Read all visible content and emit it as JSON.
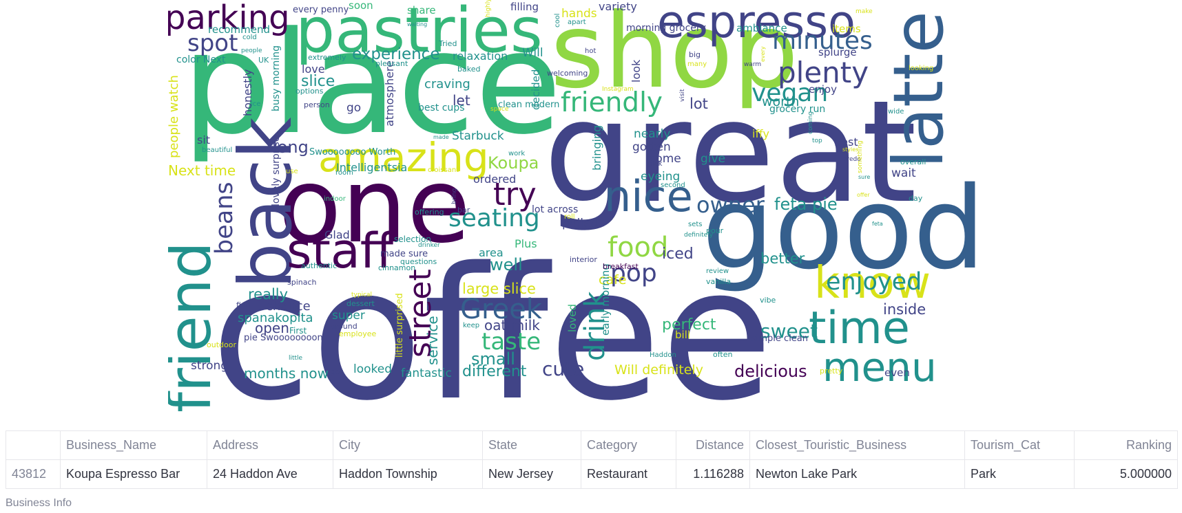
{
  "wordcloud": {
    "colors": {
      "dark_purple": "#440154",
      "indigo": "#414487",
      "blue": "#355f8d",
      "teal": "#21918c",
      "green": "#35b779",
      "lime": "#90d743",
      "yellow": "#d8e219"
    },
    "words": [
      "coffee",
      "place",
      "great",
      "shop",
      "good",
      "pastries",
      "one",
      "espresso",
      "latte",
      "back",
      "friend",
      "amazing",
      "staff",
      "nice",
      "plenty",
      "minutes",
      "vegan",
      "friendly",
      "parking",
      "spot",
      "know",
      "time",
      "menu",
      "owner",
      "feta pie",
      "food",
      "pop",
      "enjoyed",
      "try",
      "seating",
      "beans",
      "drink",
      "street",
      "Greek",
      "taste",
      "sweet",
      "cute",
      "delicious",
      "perfect",
      "small",
      "large slice",
      "Koupa",
      "long",
      "experience",
      "slice",
      "let",
      "craving",
      "iced",
      "better",
      "cafe",
      "inside",
      "lot",
      "worth",
      "well",
      "really",
      "chance",
      "spanakopita",
      "open",
      "super",
      "oat milk",
      "different",
      "months now",
      "looked",
      "fantastic",
      "Will definitely",
      "service",
      "strong",
      "Next time",
      "people watch",
      "honestly",
      "go",
      "atmosphere",
      "Starbuck",
      "Intelligentsia",
      "ordered",
      "gotten",
      "nearly",
      "come",
      "give",
      "eyeing",
      "bringing",
      "pulled",
      "lot across",
      "Glad",
      "iffy",
      "best",
      "wait",
      "hands",
      "variety",
      "morning grocery",
      "ambiance",
      "items",
      "splurge",
      "enjoy",
      "grocery run",
      "look",
      "relaxation",
      "Will",
      "recommend",
      "every penny",
      "soon",
      "share",
      "filling",
      "area",
      "Plus",
      "selection",
      "made sure",
      "questions",
      "cinnamon",
      "authentic",
      "decided",
      "loved",
      "early morning",
      "bill",
      "simple clean",
      "even",
      "lovely surprise",
      "little surprised",
      "love",
      "busy morning",
      "color Next",
      "sit",
      "best cups",
      "clean modern",
      "Swoooooooo Worth",
      "pie Swoooooooon",
      "First",
      "around",
      "employee",
      "dessert",
      "typical",
      "spinach",
      "find",
      "outdoor",
      "little",
      "got",
      "pretty",
      "often",
      "Haddon",
      "vibe",
      "vanilla",
      "review",
      "breakfast",
      "interior",
      "drinker",
      "offering",
      "bar",
      "bring",
      "indoor",
      "room",
      "use",
      "croissant",
      "made",
      "work",
      "second",
      "pick",
      "sets",
      "definitely",
      "roll",
      "day",
      "overall",
      "Fredo",
      "top",
      "something",
      "coming",
      "styles",
      "wide",
      "visit",
      "many",
      "big",
      "warm",
      "every",
      "looking",
      "make",
      "Tried",
      "waiting",
      "highly",
      "cool",
      "apart",
      "hot",
      "welcoming",
      "baked",
      "pleasant",
      "extremely",
      "people",
      "cold",
      "UK",
      "options",
      "ice",
      "person",
      "beautiful",
      "space",
      "Instagram",
      "keep",
      "sure",
      "offer",
      "pour",
      "feta"
    ]
  },
  "table": {
    "columns": [
      "",
      "Business_Name",
      "Address",
      "City",
      "State",
      "Category",
      "Distance",
      "Closest_Touristic_Business",
      "Tourism_Cat",
      "Ranking"
    ],
    "rows": [
      {
        "index": "43812",
        "business_name": "Koupa Espresso Bar",
        "address": "24 Haddon Ave",
        "city": "Haddon Township",
        "state": "New Jersey",
        "category": "Restaurant",
        "distance": "1.116288",
        "closest_touristic_business": "Newton Lake Park",
        "tourism_cat": "Park",
        "ranking": "5.000000"
      }
    ]
  },
  "caption": "Business Info"
}
